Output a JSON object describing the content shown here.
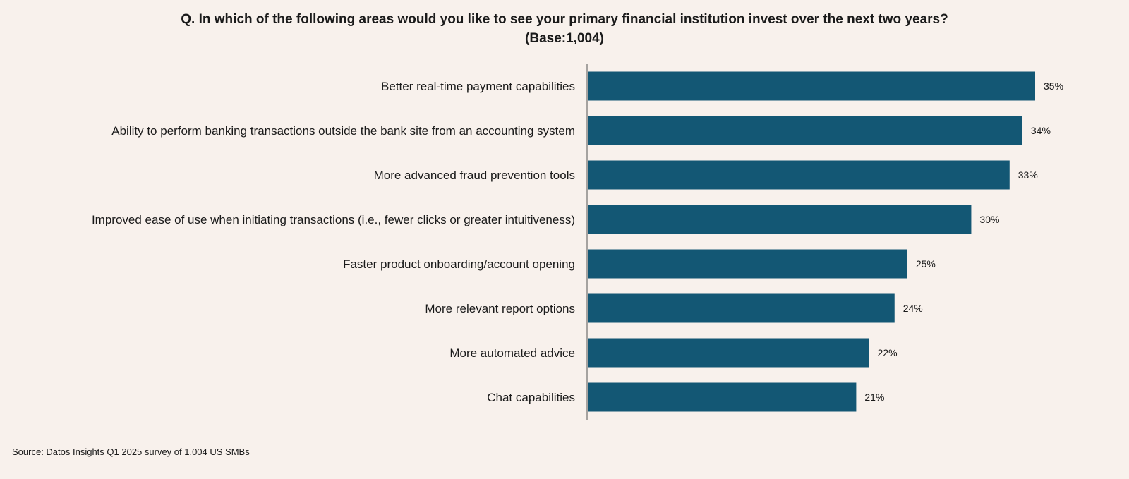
{
  "chart_data": {
    "type": "bar",
    "orientation": "horizontal",
    "title": "Q. In which of the following areas would you like to see your primary financial institution invest over the next two years?",
    "subtitle": "(Base:1,004)",
    "categories": [
      "Better real-time payment capabilities",
      "Ability to perform banking transactions outside the bank site from an accounting system",
      "More advanced fraud prevention tools",
      "Improved ease of use when initiating transactions (i.e., fewer clicks or greater intuitiveness)",
      "Faster product onboarding/account opening",
      "More relevant report options",
      "More automated advice",
      "Chat capabilities"
    ],
    "values": [
      35,
      34,
      33,
      30,
      25,
      24,
      22,
      21
    ],
    "value_labels": [
      "35%",
      "34%",
      "33%",
      "30%",
      "25%",
      "24%",
      "22%",
      "21%"
    ],
    "unit": "%",
    "xlim": [
      0,
      35
    ],
    "grid": false,
    "legend": "none",
    "bar_color": "#135774",
    "source": "Source: Datos Insights Q1 2025 survey of 1,004 US SMBs"
  }
}
